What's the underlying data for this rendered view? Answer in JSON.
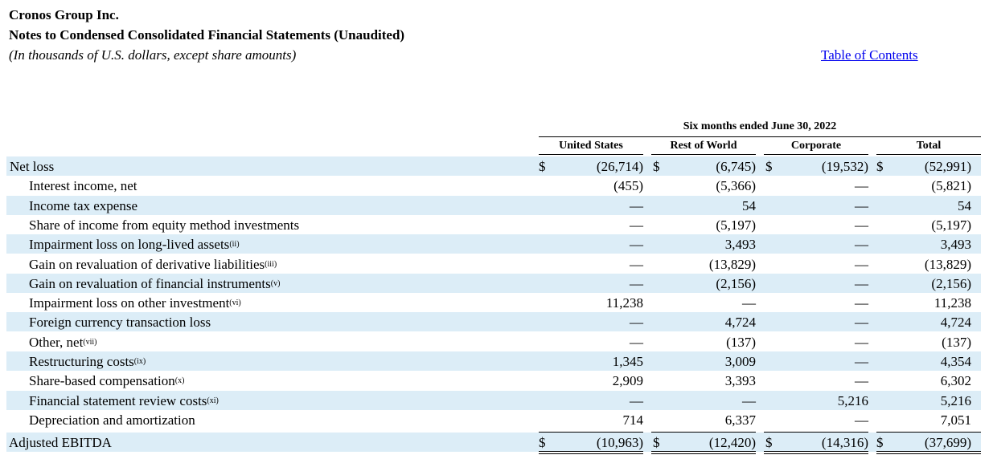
{
  "header": {
    "company": "Cronos Group Inc.",
    "subtitle": "Notes to Condensed Consolidated Financial Statements (Unaudited)",
    "units": "(In thousands of U.S. dollars, except share amounts)",
    "toc_link": "Table of Contents"
  },
  "table": {
    "period": "Six months ended June 30, 2022",
    "columns": [
      "United States",
      "Rest of World",
      "Corporate",
      "Total"
    ],
    "currency_symbol": "$",
    "rows": [
      {
        "label": "Net loss",
        "note": "",
        "values": [
          "(26,714)",
          "(6,745)",
          "(19,532)",
          "(52,991)"
        ]
      },
      {
        "label": "Interest income, net",
        "note": "",
        "values": [
          "(455)",
          "(5,366)",
          "—",
          "(5,821)"
        ]
      },
      {
        "label": "Income tax expense",
        "note": "",
        "values": [
          "—",
          "54",
          "—",
          "54"
        ]
      },
      {
        "label": "Share of income from equity method investments",
        "note": "",
        "values": [
          "—",
          "(5,197)",
          "—",
          "(5,197)"
        ]
      },
      {
        "label": "Impairment loss on long-lived assets",
        "note": "(ii)",
        "values": [
          "—",
          "3,493",
          "—",
          "3,493"
        ]
      },
      {
        "label": "Gain on revaluation of derivative liabilities",
        "note": "(iii)",
        "values": [
          "—",
          "(13,829)",
          "—",
          "(13,829)"
        ]
      },
      {
        "label": "Gain on revaluation of financial instruments",
        "note": "(v)",
        "values": [
          "—",
          "(2,156)",
          "—",
          "(2,156)"
        ]
      },
      {
        "label": "Impairment loss on other investment",
        "note": "(vi)",
        "values": [
          "11,238",
          "—",
          "—",
          "11,238"
        ]
      },
      {
        "label": "Foreign currency transaction loss",
        "note": "",
        "values": [
          "—",
          "4,724",
          "—",
          "4,724"
        ]
      },
      {
        "label": "Other, net",
        "note": "(vii)",
        "values": [
          "—",
          "(137)",
          "—",
          "(137)"
        ]
      },
      {
        "label": "Restructuring costs",
        "note": "(ix)",
        "values": [
          "1,345",
          "3,009",
          "—",
          "4,354"
        ]
      },
      {
        "label": "Share-based compensation",
        "note": "(x)",
        "values": [
          "2,909",
          "3,393",
          "—",
          "6,302"
        ]
      },
      {
        "label": "Financial statement review costs",
        "note": "(xi)",
        "values": [
          "—",
          "—",
          "5,216",
          "5,216"
        ]
      },
      {
        "label": "Depreciation and amortization",
        "note": "",
        "values": [
          "714",
          "6,337",
          "—",
          "7,051"
        ]
      }
    ],
    "total": {
      "label": "Adjusted EBITDA",
      "values": [
        "(10,963)",
        "(12,420)",
        "(14,316)",
        "(37,699)"
      ]
    }
  }
}
